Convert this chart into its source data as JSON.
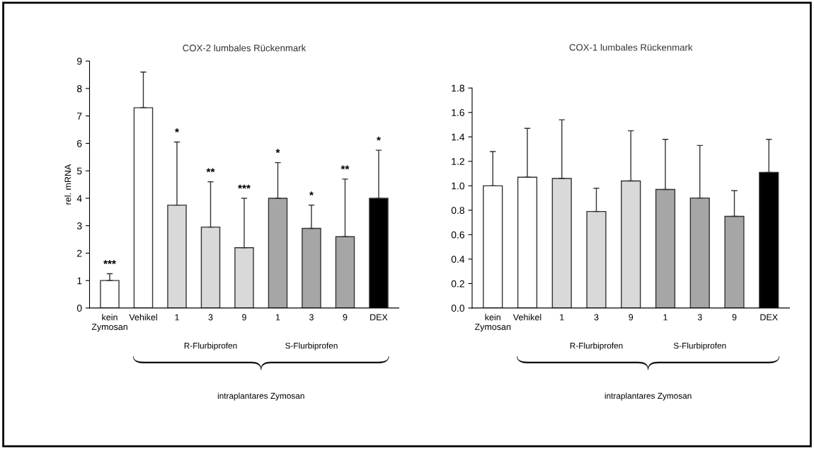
{
  "chart_data": [
    {
      "type": "bar",
      "title": "COX-2 lumbales Rückenmark",
      "ylabel": "rel. mRNA",
      "categories": [
        "kein\nZymosan",
        "Vehikel",
        "1",
        "3",
        "9",
        "1",
        "3",
        "9",
        "DEX"
      ],
      "values": [
        1.0,
        7.3,
        3.75,
        2.95,
        2.2,
        4.0,
        2.9,
        2.6,
        4.0
      ],
      "errors": [
        [
          1.0,
          1.25
        ],
        [
          7.3,
          8.6
        ],
        [
          3.75,
          6.05
        ],
        [
          2.95,
          4.6
        ],
        [
          2.2,
          4.0
        ],
        [
          4.0,
          5.3
        ],
        [
          2.9,
          3.75
        ],
        [
          2.6,
          4.7
        ],
        [
          4.0,
          5.75
        ]
      ],
      "colors": [
        "#ffffff",
        "#ffffff",
        "#d9d9d9",
        "#d9d9d9",
        "#d9d9d9",
        "#a6a6a6",
        "#a6a6a6",
        "#a6a6a6",
        "#000000"
      ],
      "ylim": [
        0,
        9
      ],
      "yticks": [
        0,
        1,
        2,
        3,
        4,
        5,
        6,
        7,
        8,
        9
      ],
      "annotations": [
        "R-Flurbiprofen",
        "S-Flurbiprofen",
        "intraplantares Zymosan",
        "***",
        "*",
        "**",
        "***",
        "*",
        "*",
        "**",
        "*"
      ]
    },
    {
      "type": "bar",
      "title": "COX-1 lumbales Rückenmark",
      "categories": [
        "kein\nZymosan",
        "Vehikel",
        "1",
        "3",
        "9",
        "1",
        "3",
        "9",
        "DEX"
      ],
      "values": [
        1.0,
        1.07,
        1.06,
        0.79,
        1.04,
        0.97,
        0.9,
        0.75,
        1.11
      ],
      "errors": [
        [
          1.0,
          1.28
        ],
        [
          1.07,
          1.47
        ],
        [
          1.06,
          1.54
        ],
        [
          0.79,
          0.98
        ],
        [
          1.04,
          1.45
        ],
        [
          0.97,
          1.38
        ],
        [
          0.9,
          1.33
        ],
        [
          0.75,
          0.96
        ],
        [
          1.11,
          1.38
        ]
      ],
      "colors": [
        "#ffffff",
        "#ffffff",
        "#d9d9d9",
        "#d9d9d9",
        "#d9d9d9",
        "#a6a6a6",
        "#a6a6a6",
        "#a6a6a6",
        "#000000"
      ],
      "ylim": [
        0,
        1.8
      ],
      "yticks": [
        {
          "value": 0,
          "label": "0.0"
        },
        {
          "value": 0.2,
          "label": "0.2"
        },
        {
          "value": 0.4,
          "label": "0.4"
        },
        {
          "value": 0.6,
          "label": "0.6"
        },
        {
          "value": 0.8,
          "label": "0.8"
        },
        {
          "value": 1.0,
          "label": "1.0"
        },
        {
          "value": 1.2,
          "label": "1.2"
        },
        {
          "value": 1.4,
          "label": "1.4"
        },
        {
          "value": 1.6,
          "label": "1.6"
        },
        {
          "value": 1.8,
          "label": "1.8"
        }
      ],
      "annotations": [
        "R-Flurbiprofen",
        "S-Flurbiprofen",
        "intraplantares Zymosan"
      ]
    }
  ]
}
